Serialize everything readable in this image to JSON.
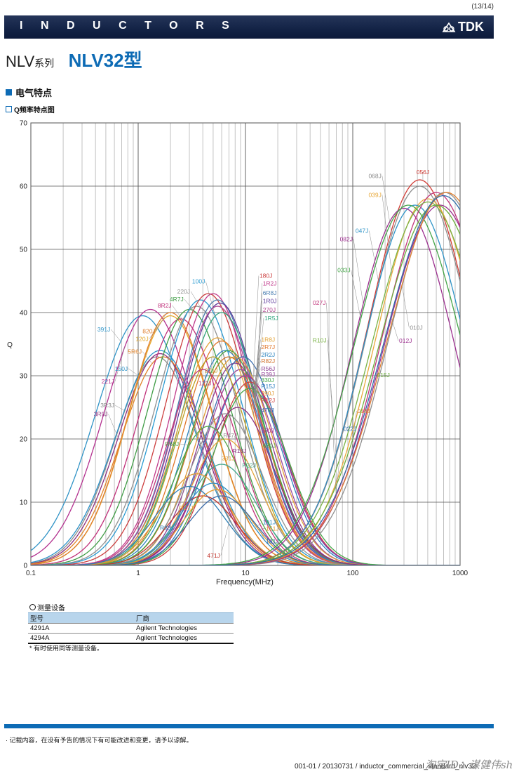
{
  "header": {
    "page_number": "(13/14)",
    "banner_title": "INDUCTORS",
    "logo_text": "TDK"
  },
  "product": {
    "series": "NLV",
    "series_suffix": "系列",
    "type": "NLV32型"
  },
  "section": {
    "title": "电气特点",
    "subtitle": "Q频率特点图"
  },
  "chart_data": {
    "type": "line",
    "ylabel": "Q",
    "xlabel": "Frequency(MHz)",
    "xscale": "log",
    "xlim": [
      0.1,
      1000
    ],
    "ylim": [
      0,
      70
    ],
    "grid": true,
    "x_ticks": [
      "0.1",
      "1",
      "10",
      "100",
      "1000"
    ],
    "y_ticks": [
      "0",
      "10",
      "20",
      "30",
      "40",
      "50",
      "60",
      "70"
    ],
    "series": [
      {
        "name": "391J",
        "color": "#2f93c6",
        "peak_f": 1.1,
        "peak_q": 39.5,
        "width": 0.62,
        "label_f": 0.55,
        "label_q": 37,
        "anchor": "end"
      },
      {
        "name": "221J",
        "color": "#b3318f",
        "peak_f": 1.3,
        "peak_q": 40.5,
        "width": 0.6,
        "label_f": 0.6,
        "label_q": 28.8,
        "anchor": "end"
      },
      {
        "name": "3R3J",
        "color": "#8c8c8c",
        "peak_f": 1.5,
        "peak_q": 33,
        "width": 0.55,
        "label_f": 0.6,
        "label_q": 25,
        "anchor": "end"
      },
      {
        "name": "3R9J",
        "color": "#8a2d7e",
        "peak_f": 1.6,
        "peak_q": 33.5,
        "width": 0.55,
        "label_f": 0.52,
        "label_q": 23.6,
        "anchor": "end"
      },
      {
        "name": "150J",
        "color": "#2a92c8",
        "peak_f": 1.6,
        "peak_q": 34,
        "width": 0.58,
        "label_f": 0.8,
        "label_q": 30.8,
        "anchor": "end"
      },
      {
        "name": "5R6J",
        "color": "#e0832a",
        "peak_f": 1.7,
        "peak_q": 33,
        "width": 0.55,
        "label_f": 1.08,
        "label_q": 33.5,
        "anchor": "end"
      },
      {
        "name": "120J",
        "color": "#e5a82c",
        "peak_f": 2.0,
        "peak_q": 39.5,
        "width": 0.55,
        "label_f": 1.25,
        "label_q": 35.5,
        "anchor": "end"
      },
      {
        "name": "820J",
        "color": "#e08030",
        "peak_f": 2.0,
        "peak_q": 40,
        "width": 0.55,
        "label_f": 1.45,
        "label_q": 36.7,
        "anchor": "end"
      },
      {
        "name": "8R2J",
        "color": "#c0307a",
        "peak_f": 2.5,
        "peak_q": 39,
        "width": 0.55,
        "label_f": 2.05,
        "label_q": 40.8,
        "anchor": "end"
      },
      {
        "name": "4R7J",
        "color": "#3f9c45",
        "peak_f": 3.0,
        "peak_q": 40.5,
        "width": 0.55,
        "label_f": 2.65,
        "label_q": 41.8,
        "anchor": "end"
      },
      {
        "name": "220J",
        "color": "#909090",
        "peak_f": 3.5,
        "peak_q": 41,
        "width": 0.55,
        "label_f": 3.05,
        "label_q": 43,
        "anchor": "end"
      },
      {
        "name": "100J",
        "color": "#2b9bd1",
        "peak_f": 3.8,
        "peak_q": 42,
        "width": 0.55,
        "label_f": 4.2,
        "label_q": 44.6,
        "anchor": "end"
      },
      {
        "name": "180J",
        "color": "#cc3e3e",
        "peak_f": 4.5,
        "peak_q": 43,
        "width": 0.55,
        "label_f": 13.5,
        "label_q": 45.5,
        "anchor": "start"
      },
      {
        "name": "1R2J",
        "color": "#c03a8b",
        "peak_f": 5.0,
        "peak_q": 43,
        "width": 0.52,
        "label_f": 14.5,
        "label_q": 44.3,
        "anchor": "start"
      },
      {
        "name": "6R8J",
        "color": "#4a7eb0",
        "peak_f": 5.5,
        "peak_q": 42,
        "width": 0.52,
        "label_f": 14.5,
        "label_q": 42.8,
        "anchor": "start"
      },
      {
        "name": "1R0J",
        "color": "#5e3c9c",
        "peak_f": 5.8,
        "peak_q": 41.5,
        "width": 0.52,
        "label_f": 14.5,
        "label_q": 41.5,
        "anchor": "start"
      },
      {
        "name": "270J",
        "color": "#b04892",
        "peak_f": 5.5,
        "peak_q": 41,
        "width": 0.52,
        "label_f": 14.5,
        "label_q": 40.1,
        "anchor": "start"
      },
      {
        "name": "1R5J",
        "color": "#34a77f",
        "peak_f": 6.0,
        "peak_q": 40,
        "width": 0.52,
        "label_f": 15,
        "label_q": 38.8,
        "anchor": "start"
      },
      {
        "name": "1R8J",
        "color": "#e3a43a",
        "peak_f": 5.5,
        "peak_q": 36,
        "width": 0.52,
        "label_f": 14,
        "label_q": 35.4,
        "anchor": "start"
      },
      {
        "name": "2R7J",
        "color": "#e0762a",
        "peak_f": 6.0,
        "peak_q": 35.5,
        "width": 0.5,
        "label_f": 14,
        "label_q": 34.2,
        "anchor": "start"
      },
      {
        "name": "2R2J",
        "color": "#2f86c0",
        "peak_f": 6.5,
        "peak_q": 34,
        "width": 0.5,
        "label_f": 14,
        "label_q": 33,
        "anchor": "start"
      },
      {
        "name": "R82J",
        "color": "#d0702a",
        "peak_f": 7.0,
        "peak_q": 33,
        "width": 0.5,
        "label_f": 14,
        "label_q": 32,
        "anchor": "start"
      },
      {
        "name": "R56J",
        "color": "#8a3b8f",
        "peak_f": 8.0,
        "peak_q": 32,
        "width": 0.48,
        "label_f": 14,
        "label_q": 30.8,
        "anchor": "start"
      },
      {
        "name": "R39J",
        "color": "#9a4aa0",
        "peak_f": 9.0,
        "peak_q": 31,
        "width": 0.48,
        "label_f": 14,
        "label_q": 29.9,
        "anchor": "start"
      },
      {
        "name": "330J",
        "color": "#43a547",
        "peak_f": 7.0,
        "peak_q": 34,
        "width": 0.5,
        "label_f": 14,
        "label_q": 29,
        "anchor": "start"
      },
      {
        "name": "R15J",
        "color": "#2f7fc0",
        "peak_f": 10.0,
        "peak_q": 30,
        "width": 0.48,
        "label_f": 14,
        "label_q": 28,
        "anchor": "start"
      },
      {
        "name": "390J",
        "color": "#e09a35",
        "peak_f": 8.0,
        "peak_q": 33,
        "width": 0.5,
        "label_f": 14,
        "label_q": 26.9,
        "anchor": "start"
      },
      {
        "name": "R12J",
        "color": "#cc3f3f",
        "peak_f": 11.0,
        "peak_q": 29,
        "width": 0.48,
        "label_f": 14,
        "label_q": 25.8,
        "anchor": "start"
      },
      {
        "name": "470J",
        "color": "#3b6db0",
        "peak_f": 9.5,
        "peak_q": 33,
        "width": 0.5,
        "label_f": 14,
        "label_q": 24.2,
        "anchor": "start"
      },
      {
        "name": "560J",
        "color": "#b3318f",
        "peak_f": 10.0,
        "peak_q": 30,
        "width": 0.5,
        "label_f": 14,
        "label_q": 21,
        "anchor": "start"
      },
      {
        "name": "680J",
        "color": "#46a64a",
        "peak_f": 11.0,
        "peak_q": 28,
        "width": 0.5,
        "label_f": 14.5,
        "label_q": 18.6,
        "anchor": "start"
      },
      {
        "name": "R18J",
        "color": "#8a2d7e",
        "peak_f": 8.5,
        "peak_q": 25,
        "width": 0.48,
        "label_f": 8.8,
        "label_q": 17.8,
        "anchor": "middle"
      },
      {
        "name": "271J",
        "color": "#b9a021",
        "peak_f": 5.0,
        "peak_q": 33,
        "width": 0.48,
        "label_f": 4.8,
        "label_q": 30.5,
        "anchor": "middle"
      },
      {
        "name": "121J",
        "color": "#c03a7a",
        "peak_f": 4.0,
        "peak_q": 31,
        "width": 0.48,
        "label_f": 4.2,
        "label_q": 28.5,
        "anchor": "middle"
      },
      {
        "name": "R47J",
        "color": "#909090",
        "peak_f": 6.5,
        "peak_q": 24,
        "width": 0.48,
        "label_f": 7.2,
        "label_q": 20.2,
        "anchor": "middle"
      },
      {
        "name": "331J",
        "color": "#e3a43a",
        "peak_f": 6.5,
        "peak_q": 20,
        "width": 0.46,
        "label_f": 6.9,
        "label_q": 16.6,
        "anchor": "middle"
      },
      {
        "name": "R68J",
        "color": "#54a546",
        "peak_f": 4.5,
        "peak_q": 22,
        "width": 0.46,
        "label_f": 2.4,
        "label_q": 18.9,
        "anchor": "end"
      },
      {
        "name": "R22J",
        "color": "#43a78e",
        "peak_f": 6.0,
        "peak_q": 16,
        "width": 0.46,
        "label_f": 10.8,
        "label_q": 15.5,
        "anchor": "middle"
      },
      {
        "name": "R27J",
        "color": "#e09a35",
        "peak_f": 3.5,
        "peak_q": 14.5,
        "width": 0.46,
        "label_f": 2.8,
        "label_q": 8.8,
        "anchor": "middle"
      },
      {
        "name": "R33J",
        "color": "#2e7fb5",
        "peak_f": 3.0,
        "peak_q": 12.5,
        "width": 0.46,
        "label_f": 2.15,
        "label_q": 5.6,
        "anchor": "end"
      },
      {
        "name": "471J",
        "color": "#c2352d",
        "peak_f": 4.0,
        "peak_q": 11,
        "width": 0.44,
        "label_f": 5.8,
        "label_q": 1.2,
        "anchor": "end"
      },
      {
        "name": "101J",
        "color": "#2b8fc6",
        "peak_f": 5.0,
        "peak_q": 13,
        "width": 0.44,
        "label_f": 14.5,
        "label_q": 6.5,
        "anchor": "start"
      },
      {
        "name": "151J",
        "color": "#e39a2a",
        "peak_f": 5.5,
        "peak_q": 12,
        "width": 0.44,
        "label_f": 15.5,
        "label_q": 5.5,
        "anchor": "start"
      },
      {
        "name": "181J",
        "color": "#3a6aa8",
        "peak_f": 6.0,
        "peak_q": 11,
        "width": 0.44,
        "label_f": 15.5,
        "label_q": 3.5,
        "anchor": "start"
      },
      {
        "name": "068J",
        "color": "#8d8d8d",
        "peak_f": 420,
        "peak_q": 60,
        "width": 0.7,
        "label_f": 185,
        "label_q": 61.3,
        "anchor": "end"
      },
      {
        "name": "056J",
        "color": "#d13c35",
        "peak_f": 420,
        "peak_q": 61,
        "width": 0.7,
        "label_f": 450,
        "label_q": 61.9,
        "anchor": "middle"
      },
      {
        "name": "039J",
        "color": "#e8a93b",
        "peak_f": 500,
        "peak_q": 58,
        "width": 0.7,
        "label_f": 185,
        "label_q": 58.3,
        "anchor": "end"
      },
      {
        "name": "047J",
        "color": "#2e93c6",
        "peak_f": 380,
        "peak_q": 57,
        "width": 0.68,
        "label_f": 140,
        "label_q": 52.6,
        "anchor": "end"
      },
      {
        "name": "082J",
        "color": "#9b2f8e",
        "peak_f": 300,
        "peak_q": 56.5,
        "width": 0.68,
        "label_f": 100,
        "label_q": 51.3,
        "anchor": "end"
      },
      {
        "name": "033J",
        "color": "#43a547",
        "peak_f": 330,
        "peak_q": 57,
        "width": 0.72,
        "label_f": 95,
        "label_q": 46.4,
        "anchor": "end"
      },
      {
        "name": "027J",
        "color": "#c2357b",
        "peak_f": 600,
        "peak_q": 59,
        "width": 0.72,
        "label_f": 56,
        "label_q": 41.2,
        "anchor": "end"
      },
      {
        "name": "010J",
        "color": "#8f8f8f",
        "peak_f": 720,
        "peak_q": 59,
        "width": 0.74,
        "label_f": 340,
        "label_q": 37.3,
        "anchor": "start"
      },
      {
        "name": "012J",
        "color": "#9b2f8e",
        "peak_f": 650,
        "peak_q": 57,
        "width": 0.74,
        "label_f": 270,
        "label_q": 35.2,
        "anchor": "start"
      },
      {
        "name": "R10J",
        "color": "#7ab344",
        "peak_f": 500,
        "peak_q": 57.5,
        "width": 0.74,
        "label_f": 57,
        "label_q": 35.3,
        "anchor": "end"
      },
      {
        "name": "015J",
        "color": "#6cae3c",
        "peak_f": 600,
        "peak_q": 57,
        "width": 0.76,
        "label_f": 168,
        "label_q": 29.8,
        "anchor": "start"
      },
      {
        "name": "018J",
        "color": "#e08030",
        "peak_f": 750,
        "peak_q": 59,
        "width": 0.78,
        "label_f": 110,
        "label_q": 24.1,
        "anchor": "start"
      },
      {
        "name": "022J",
        "color": "#2e6ba8",
        "peak_f": 700,
        "peak_q": 58.5,
        "width": 0.78,
        "label_f": 82,
        "label_q": 21.3,
        "anchor": "start"
      }
    ]
  },
  "equipment": {
    "heading": "测量设备",
    "col_model": "型号",
    "col_maker": "厂商",
    "rows": [
      {
        "model": "4291A",
        "maker": "Agilent Technologies"
      },
      {
        "model": "4294A",
        "maker": "Agilent Technologies"
      }
    ],
    "note": "* 有时使用同等测量设备。"
  },
  "footer": {
    "disclaimer": "· 记载内容，在没有予告的情况下有可能改进和变更，请予以谅解。",
    "doc_id": "001-01 / 20130731 / inductor_commercial_standard_nlv32",
    "watermark": "淘宝ID：谋健伟sh"
  }
}
